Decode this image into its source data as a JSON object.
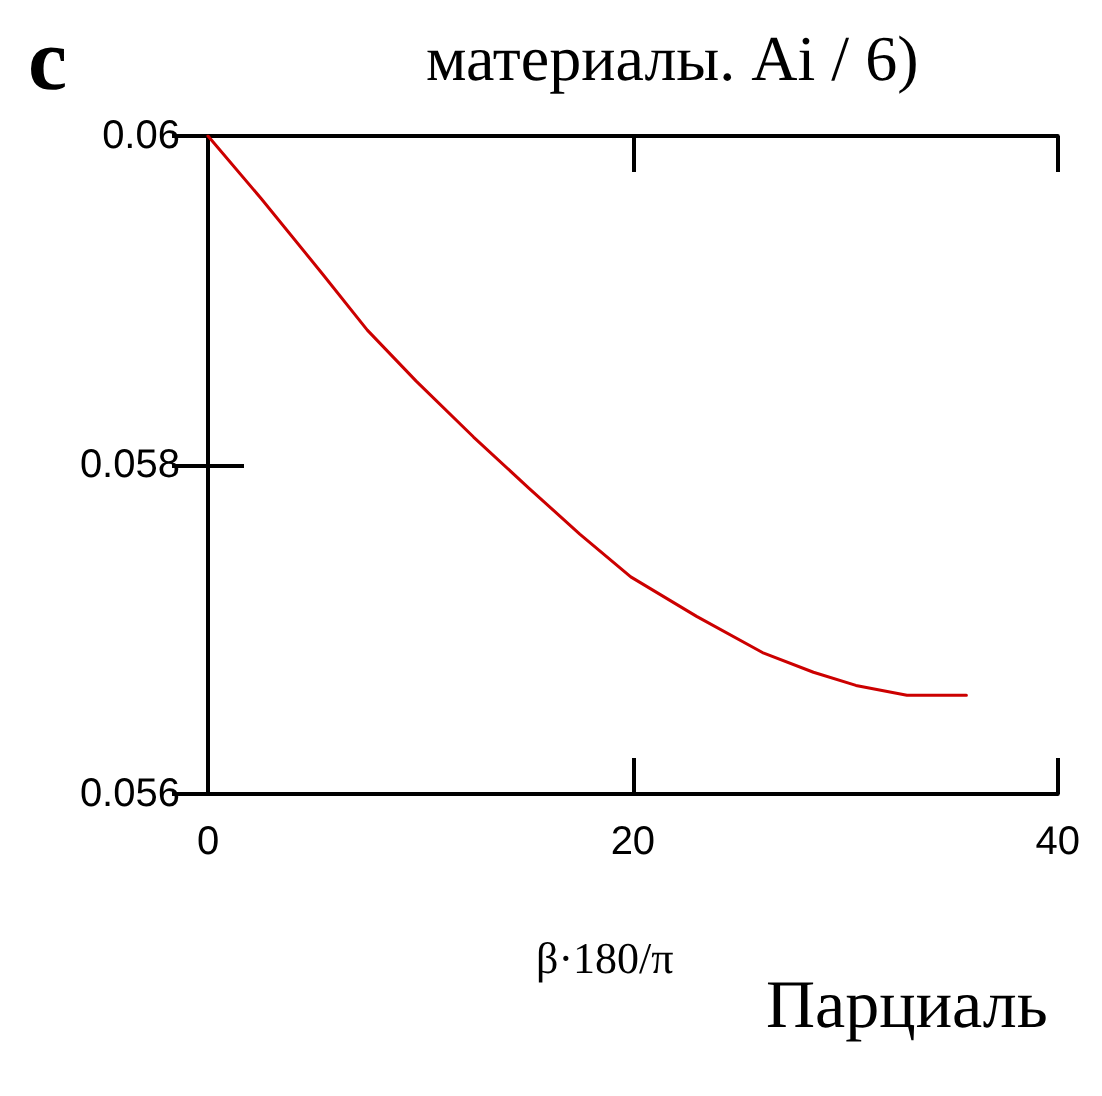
{
  "chart_data": {
    "type": "line",
    "title": "материалы. Ai / 6)",
    "xlabel": "β·180/π",
    "annotations": [
      "с",
      "Парциаль"
    ],
    "x": [
      0,
      2.5,
      5.4,
      7.5,
      9.8,
      12.5,
      15.1,
      17.5,
      19.9,
      23,
      26.1,
      28.5,
      30.5,
      32.9,
      35.7
    ],
    "series": [
      {
        "color": "#cc0000",
        "values": [
          0.06,
          0.05962,
          0.05916,
          0.05882,
          0.05851,
          0.05817,
          0.05786,
          0.05758,
          0.05732,
          0.05708,
          0.05686,
          0.05674,
          0.05666,
          0.0566,
          0.0566
        ]
      }
    ],
    "xlim": [
      0,
      40
    ],
    "xticks": [
      0,
      20,
      40
    ],
    "ylim": [
      0.056,
      0.06
    ],
    "yticks": [
      0.056,
      0.058,
      0.06
    ],
    "grid": false,
    "marker": "none",
    "line_style": "solid"
  }
}
